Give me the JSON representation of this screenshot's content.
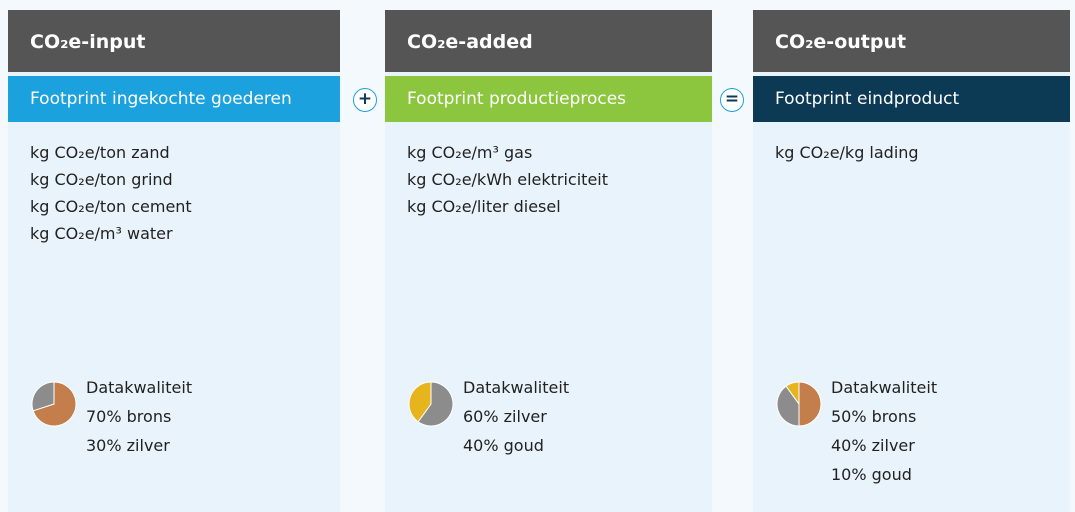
{
  "columns": [
    {
      "title": "CO₂e-input",
      "subtitle": "Footprint ingekochte goederen",
      "subtitle_color": "#1ba1dd",
      "items": [
        "kg CO₂e/ton zand",
        "kg CO₂e/ton grind",
        "kg CO₂e/ton cement",
        "kg CO₂e/m³ water"
      ],
      "quality": {
        "title": "Datakwaliteit",
        "parts": [
          {
            "value": 70,
            "label": "70% brons",
            "color": "#c47e4c"
          },
          {
            "value": 30,
            "label": "30% zilver",
            "color": "#8c8c8c"
          }
        ]
      }
    },
    {
      "title": "CO₂e-added",
      "subtitle": "Footprint productieproces",
      "subtitle_color": "#8cc63e",
      "items": [
        "kg CO₂e/m³ gas",
        "kg CO₂e/kWh elektriciteit",
        "kg CO₂e/liter diesel"
      ],
      "quality": {
        "title": "Datakwaliteit",
        "parts": [
          {
            "value": 60,
            "label": "60% zilver",
            "color": "#8c8c8c"
          },
          {
            "value": 40,
            "label": "40% goud",
            "color": "#e6b41c"
          }
        ]
      }
    },
    {
      "title": "CO₂e-output",
      "subtitle": "Footprint eindproduct",
      "subtitle_color": "#0c3a55",
      "items": [
        "kg CO₂e/kg lading"
      ],
      "quality": {
        "title": "Datakwaliteit",
        "parts": [
          {
            "value": 50,
            "label": "50% brons",
            "color": "#c47e4c"
          },
          {
            "value": 40,
            "label": "40% zilver",
            "color": "#8c8c8c"
          },
          {
            "value": 10,
            "label": "10% goud",
            "color": "#e6b41c"
          }
        ]
      }
    }
  ],
  "operators": [
    "+",
    "="
  ]
}
